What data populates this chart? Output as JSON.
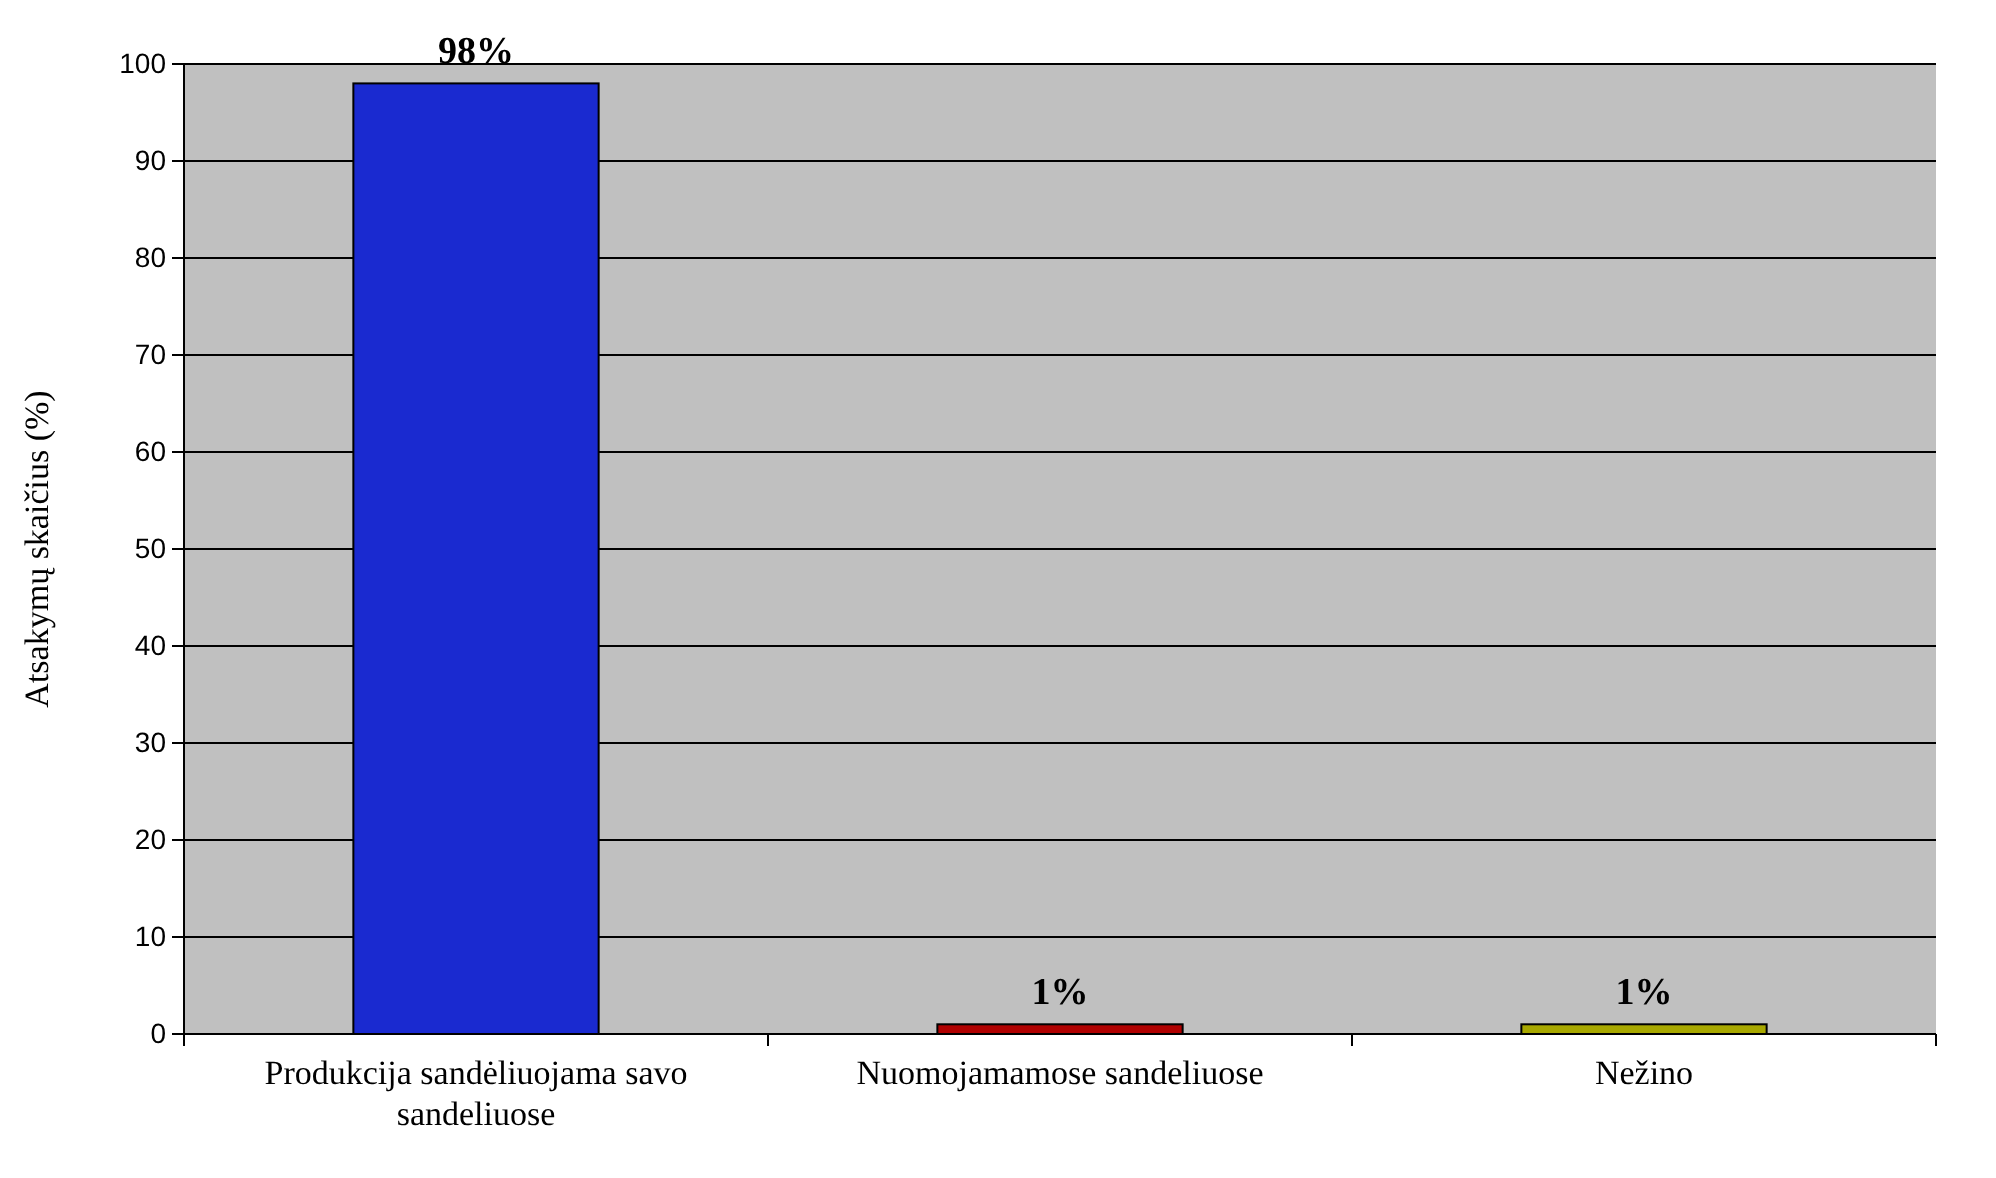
{
  "chart_data": {
    "type": "bar",
    "ylabel": "Atsakymų skaičius (%)",
    "categories": [
      "Produkcija sandėliuojama savo sandeliuose",
      "Nuomojamamose sandeliuose",
      "Nežino"
    ],
    "values": [
      98,
      1,
      1
    ],
    "colors": [
      "#1a2ad0",
      "#b00000",
      "#a8a800"
    ],
    "value_labels": [
      "98%",
      "1%",
      "1%"
    ],
    "ylim": [
      0,
      100
    ],
    "yticks": [
      0,
      10,
      20,
      30,
      40,
      50,
      60,
      70,
      80,
      90,
      100
    ],
    "grid": "y"
  }
}
